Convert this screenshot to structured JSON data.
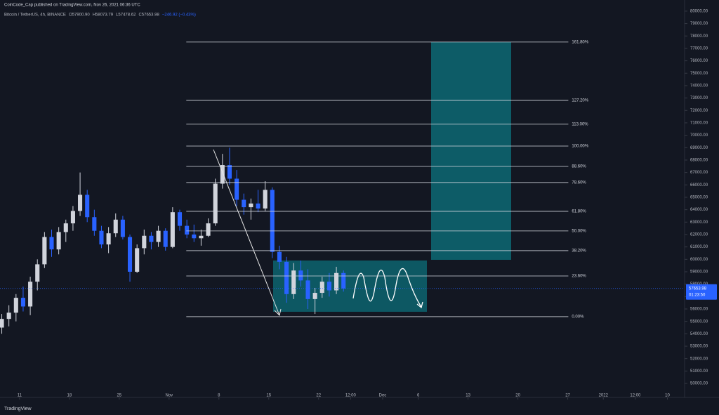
{
  "header": {
    "publisher": "CoinCode_Cap published on TradingView.com, Nov 26, 2021 06:36 UTC",
    "brand": "TradingView"
  },
  "chart_data": {
    "type": "candlestick",
    "title": "Bitcoin / TetherUS, 4h, BINANCE",
    "legend_values": [
      "O57900.90",
      "H58073.79",
      "L57478.62",
      "C57653.98",
      "−246.92 (−0.43%)"
    ],
    "up_color": "#d1d4dc",
    "down_color": "#2962ff",
    "x": [
      "2021-10-08",
      "2021-10-09",
      "2021-10-10",
      "2021-10-11",
      "2021-10-12",
      "2021-10-13",
      "2021-10-14",
      "2021-10-15",
      "2021-10-16",
      "2021-10-17",
      "2021-10-18",
      "2021-10-19",
      "2021-10-20",
      "2021-10-21",
      "2021-10-22",
      "2021-10-23",
      "2021-10-24",
      "2021-10-25",
      "2021-10-26",
      "2021-10-27",
      "2021-10-28",
      "2021-10-29",
      "2021-10-30",
      "2021-10-31",
      "2021-11-01",
      "2021-11-02",
      "2021-11-03",
      "2021-11-04",
      "2021-11-05",
      "2021-11-06",
      "2021-11-07",
      "2021-11-08",
      "2021-11-09",
      "2021-11-10",
      "2021-11-11",
      "2021-11-12",
      "2021-11-13",
      "2021-11-14",
      "2021-11-15",
      "2021-11-16",
      "2021-11-17",
      "2021-11-18",
      "2021-11-19",
      "2021-11-20",
      "2021-11-21",
      "2021-11-22",
      "2021-11-23",
      "2021-11-24",
      "2021-11-25"
    ],
    "open": [
      54500,
      55200,
      55700,
      56900,
      56200,
      58200,
      59600,
      61800,
      60800,
      62200,
      62900,
      63900,
      65200,
      63400,
      62300,
      61200,
      62100,
      63200,
      61800,
      59000,
      60900,
      61900,
      61400,
      62300,
      61000,
      63800,
      62700,
      62000,
      61700,
      61900,
      62900,
      66100,
      67600,
      66500,
      64800,
      64200,
      64500,
      64100,
      65600,
      60600,
      59800,
      57200,
      59100,
      58300,
      56800,
      57300,
      58200,
      57500,
      58900
    ],
    "high": [
      55600,
      56300,
      57200,
      57800,
      58600,
      60000,
      62200,
      62400,
      62600,
      63200,
      64300,
      67000,
      65600,
      64000,
      62700,
      62600,
      63700,
      63500,
      62000,
      61200,
      62400,
      62200,
      62700,
      62500,
      64200,
      64000,
      63200,
      62800,
      62400,
      63300,
      66500,
      68500,
      69000,
      67200,
      65300,
      64900,
      65600,
      66300,
      65800,
      61100,
      60200,
      59700,
      59900,
      59200,
      57700,
      58600,
      58900,
      59400,
      59100
    ],
    "low": [
      54000,
      54600,
      55000,
      55800,
      55500,
      57500,
      59300,
      60200,
      60400,
      61400,
      62300,
      63500,
      63000,
      61900,
      60900,
      60500,
      61800,
      61600,
      58200,
      58900,
      60400,
      60800,
      61000,
      60700,
      60900,
      62300,
      61700,
      61400,
      61100,
      61800,
      62700,
      65700,
      66000,
      64300,
      63600,
      63200,
      63800,
      63900,
      60100,
      59200,
      56500,
      56800,
      57800,
      56000,
      55600,
      56900,
      57000,
      57200,
      57400
    ],
    "close": [
      55200,
      55700,
      56900,
      56200,
      58200,
      59600,
      61800,
      60800,
      62200,
      62900,
      63900,
      65200,
      63400,
      62300,
      61200,
      62100,
      63200,
      61800,
      59000,
      60900,
      61900,
      61400,
      62300,
      61000,
      63800,
      62700,
      62000,
      61700,
      61900,
      62900,
      66100,
      67600,
      66500,
      64800,
      64200,
      64500,
      64100,
      65600,
      60600,
      59800,
      57200,
      59100,
      58300,
      56800,
      57300,
      58200,
      57500,
      58900,
      57650
    ],
    "last_price": 57653.98,
    "countdown": "01:23:50",
    "fib_levels": [
      {
        "label": "161.80%",
        "value": 77510
      },
      {
        "label": "127.20%",
        "value": 72810
      },
      {
        "label": "113.00%",
        "value": 70890
      },
      {
        "label": "100.00%",
        "value": 69130
      },
      {
        "label": "88.60%",
        "value": 67490
      },
      {
        "label": "78.60%",
        "value": 66190
      },
      {
        "label": "61.80%",
        "value": 63870
      },
      {
        "label": "50.00%",
        "value": 62290
      },
      {
        "label": "38.20%",
        "value": 60700
      },
      {
        "label": "23.60%",
        "value": 58660
      },
      {
        "label": "0.00%",
        "value": 55380
      }
    ],
    "fib_start": "2021-11-03T10:00",
    "fib_end": "2021-12-27T02:00",
    "xlim": [
      "2021-10-08T06:00",
      "2022-01-12T10:00"
    ],
    "xticks": [
      {
        "value": "2021-10-11T00:00",
        "label": "11"
      },
      {
        "value": "2021-10-18T00:00",
        "label": "18"
      },
      {
        "value": "2021-10-25T00:00",
        "label": "25"
      },
      {
        "value": "2021-11-01T00:00",
        "label": "Nov"
      },
      {
        "value": "2021-11-08T00:00",
        "label": "8"
      },
      {
        "value": "2021-11-15T00:00",
        "label": "15"
      },
      {
        "value": "2021-11-22T00:00",
        "label": "22"
      },
      {
        "value": "2021-11-26T12:00",
        "label": "12:00"
      },
      {
        "value": "2021-12-01T00:00",
        "label": "Dec"
      },
      {
        "value": "2021-12-06T00:00",
        "label": "6"
      },
      {
        "value": "2021-12-13T00:00",
        "label": "13"
      },
      {
        "value": "2021-12-20T00:00",
        "label": "20"
      },
      {
        "value": "2021-12-27T00:00",
        "label": "27"
      },
      {
        "value": "2022-01-01T00:00",
        "label": "2022"
      },
      {
        "value": "2022-01-05T12:00",
        "label": "12:00"
      },
      {
        "value": "2022-01-10T00:00",
        "label": "10"
      }
    ],
    "ylim": [
      48870,
      80900
    ],
    "yticks": [
      {
        "value": 50000,
        "label": "50000.00"
      },
      {
        "value": 51000,
        "label": "51000.00"
      },
      {
        "value": 52000,
        "label": "52000.00"
      },
      {
        "value": 53000,
        "label": "53000.00"
      },
      {
        "value": 54000,
        "label": "54000.00"
      },
      {
        "value": 55000,
        "label": "55000.00"
      },
      {
        "value": 56000,
        "label": "56000.00"
      },
      {
        "value": 57000,
        "label": "57000.00"
      },
      {
        "value": 58000,
        "label": "58000.00"
      },
      {
        "value": 59000,
        "label": "59000.00"
      },
      {
        "value": 60000,
        "label": "60000.00"
      },
      {
        "value": 61000,
        "label": "61000.00"
      },
      {
        "value": 62000,
        "label": "62000.00"
      },
      {
        "value": 63000,
        "label": "63000.00"
      },
      {
        "value": 64000,
        "label": "64000.00"
      },
      {
        "value": 65000,
        "label": "65000.00"
      },
      {
        "value": 66000,
        "label": "66000.00"
      },
      {
        "value": 67000,
        "label": "67000.00"
      },
      {
        "value": 68000,
        "label": "68000.00"
      },
      {
        "value": 69000,
        "label": "69000.00"
      },
      {
        "value": 70000,
        "label": "70000.00"
      },
      {
        "value": 71000,
        "label": "71000.00"
      },
      {
        "value": 72000,
        "label": "72000.00"
      },
      {
        "value": 73000,
        "label": "73000.00"
      },
      {
        "value": 74000,
        "label": "74000.00"
      },
      {
        "value": 75000,
        "label": "75000.00"
      },
      {
        "value": 76000,
        "label": "76000.00"
      },
      {
        "value": 77000,
        "label": "77000.00"
      },
      {
        "value": 78000,
        "label": "78000.00"
      },
      {
        "value": 79000,
        "label": "79000.00"
      },
      {
        "value": 80000,
        "label": "80000.00"
      }
    ]
  }
}
